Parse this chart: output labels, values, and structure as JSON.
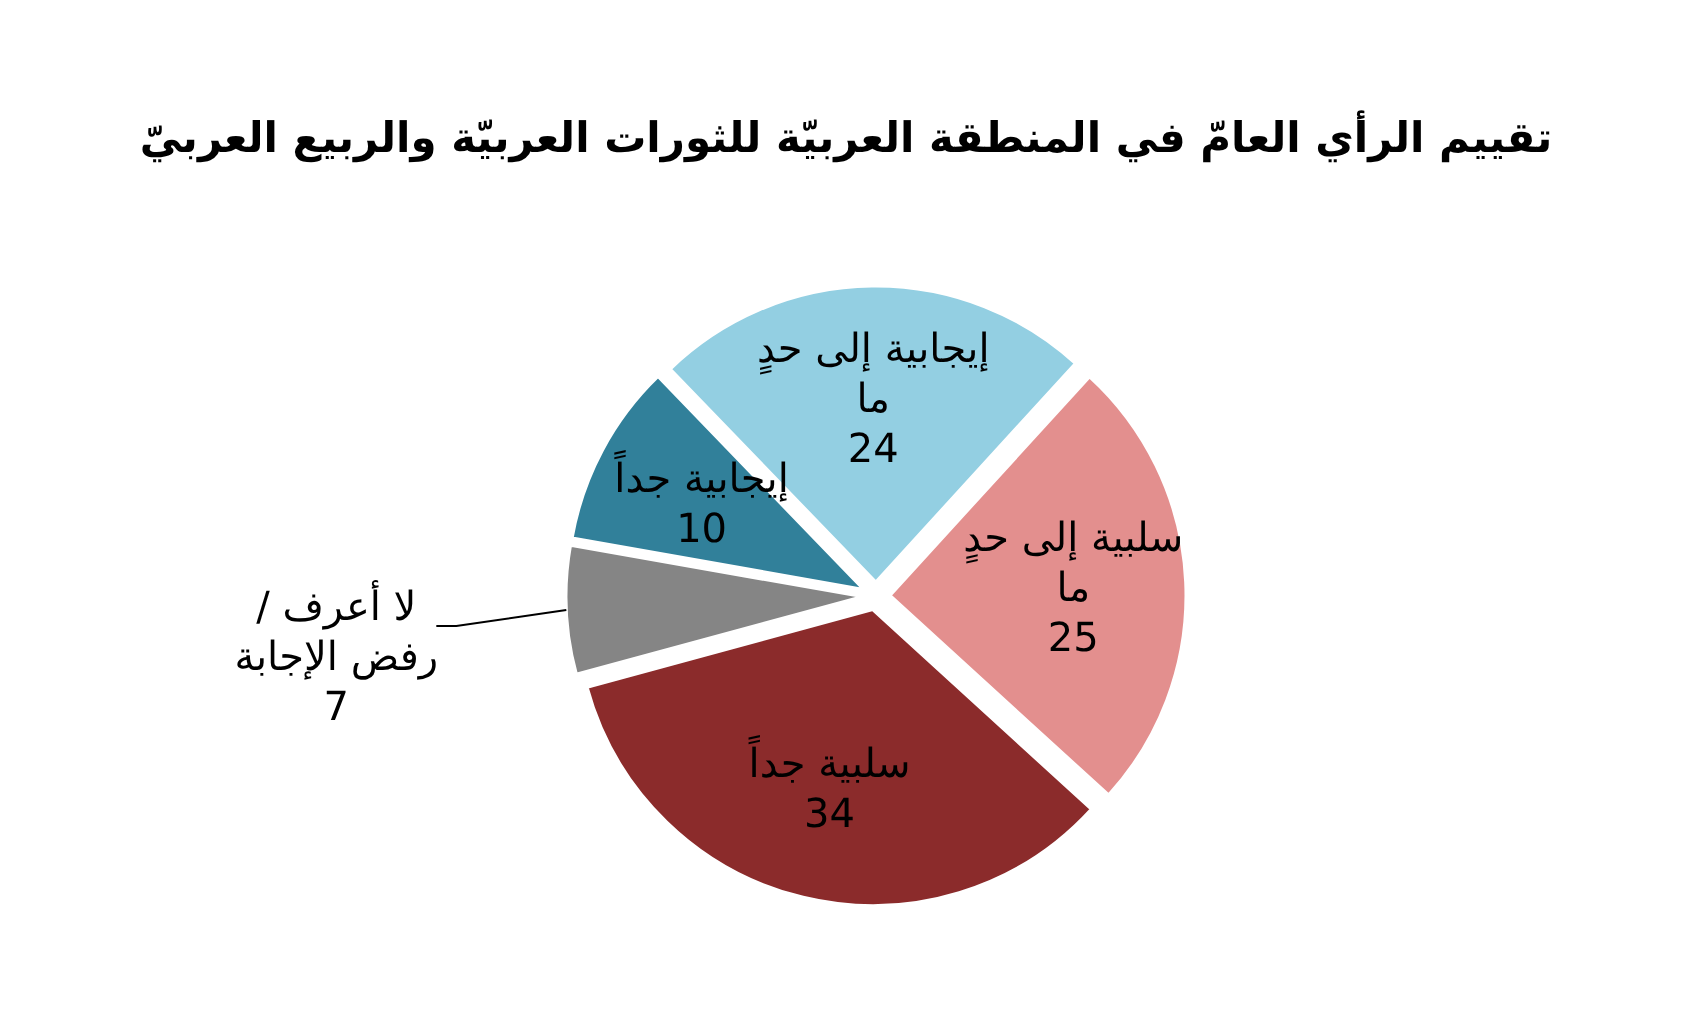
{
  "chart_data": {
    "type": "pie",
    "title": "تقييم الرأي العامّ في المنطقة العربيّة للثورات العربيّة والربيع العربيّ",
    "categories": [
      "إيجابية إلى حدٍ ما",
      "سلبية إلى حدٍ ما",
      "سلبية جداً",
      "لا أعرف / رفض الإجابة",
      "إيجابية جداً"
    ],
    "values": [
      24,
      25,
      34,
      7,
      10
    ],
    "colors": [
      "#93cfe2",
      "#e38f8e",
      "#8b2b2b",
      "#858585",
      "#31809a"
    ],
    "data_labels": true
  }
}
